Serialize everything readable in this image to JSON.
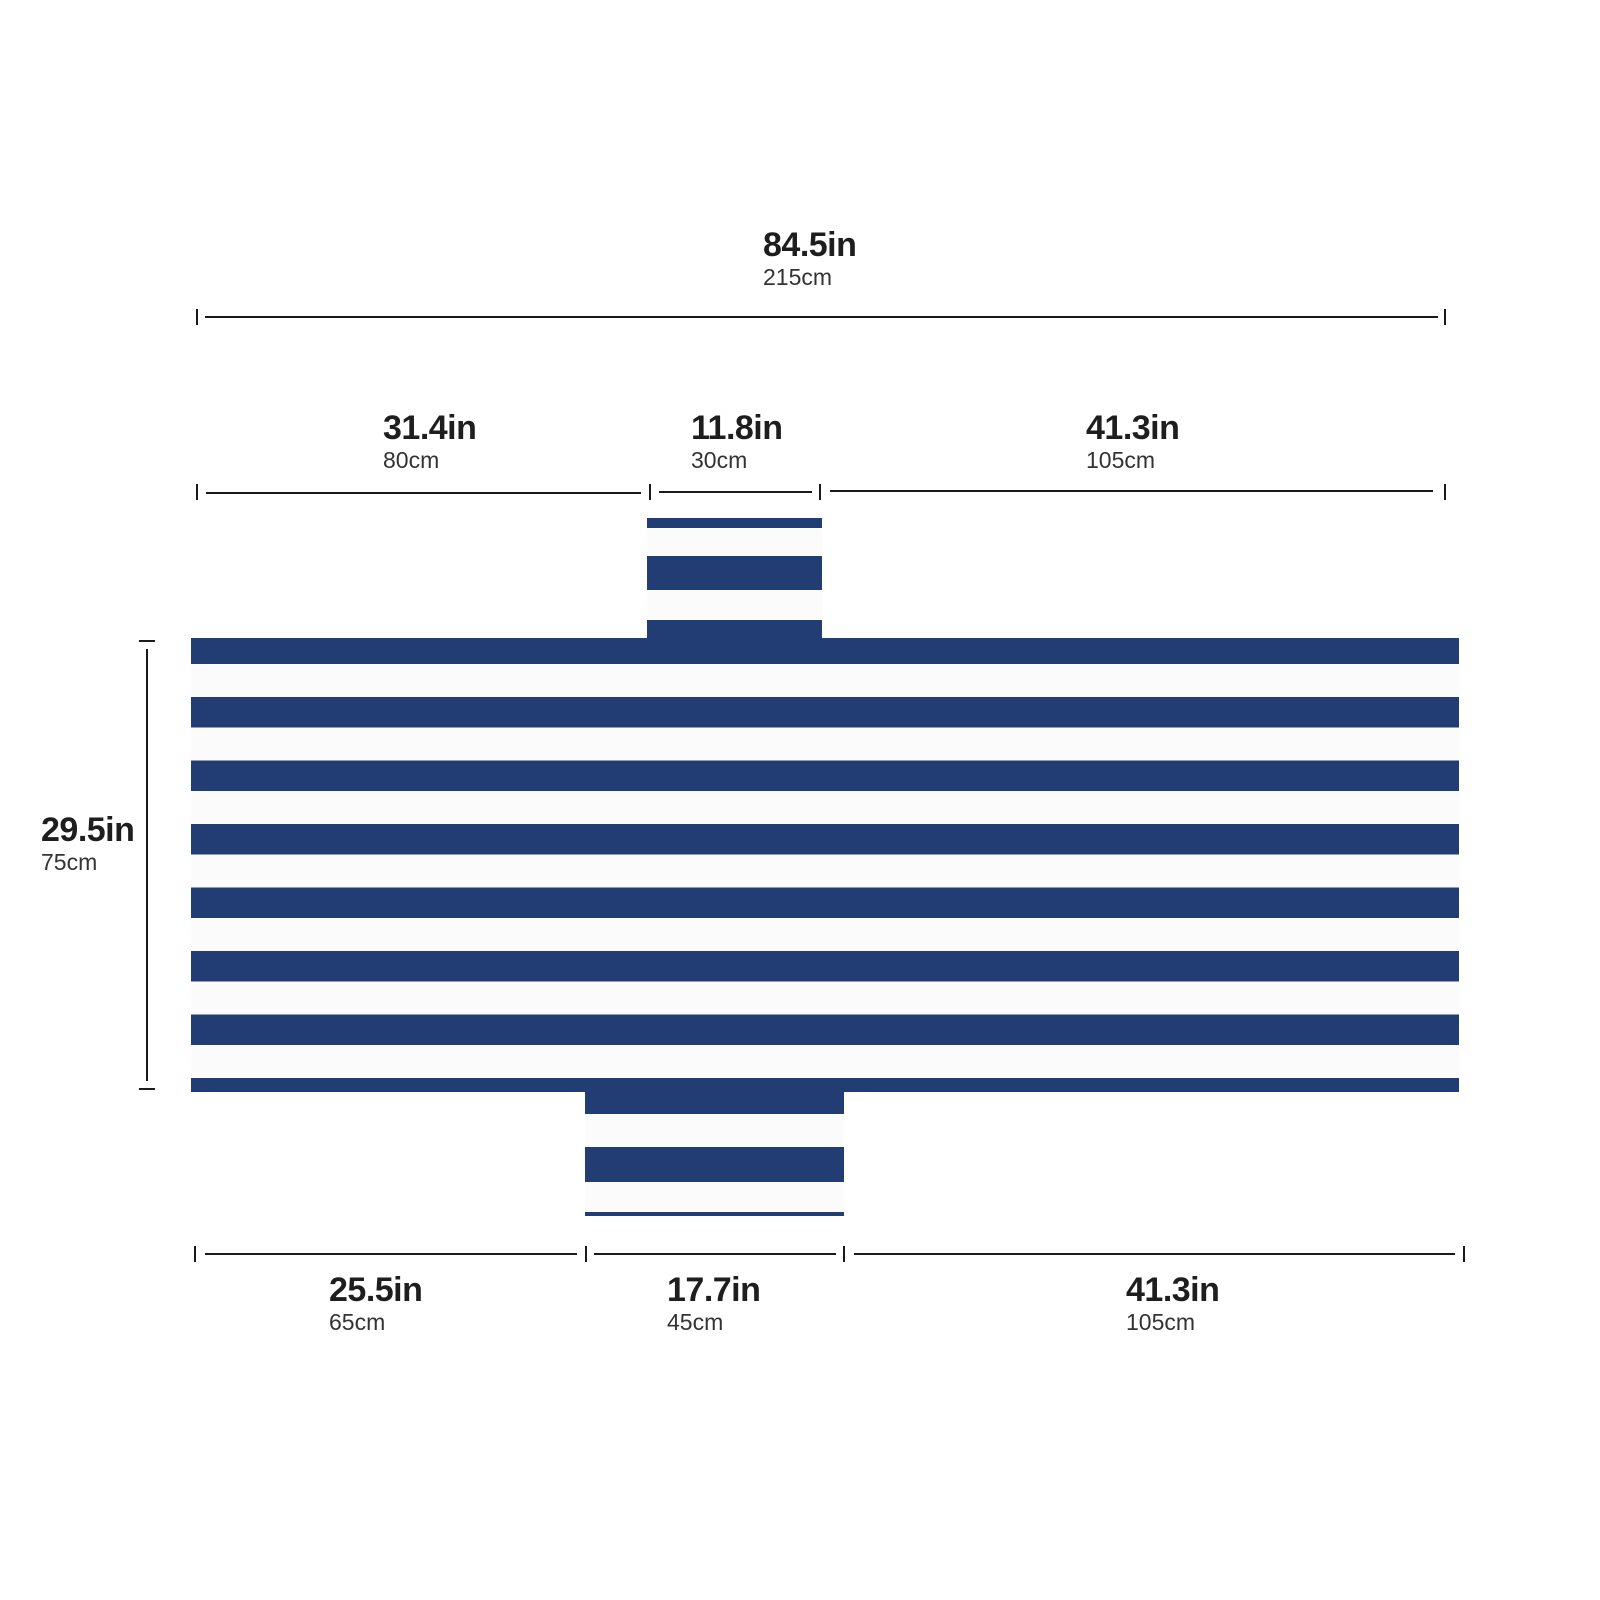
{
  "colors": {
    "stripe_navy": "#223d73",
    "stripe_white": "#fbfbfb",
    "line": "#1a1a1a"
  },
  "overall_length": {
    "in": "84.5in",
    "cm": "215cm"
  },
  "top_segments": [
    {
      "in": "31.4in",
      "cm": "80cm"
    },
    {
      "in": "11.8in",
      "cm": "30cm"
    },
    {
      "in": "41.3in",
      "cm": "105cm"
    }
  ],
  "width": {
    "in": "29.5in",
    "cm": "75cm"
  },
  "bottom_segments": [
    {
      "in": "25.5in",
      "cm": "65cm"
    },
    {
      "in": "17.7in",
      "cm": "45cm"
    },
    {
      "in": "41.3in",
      "cm": "105cm"
    }
  ]
}
